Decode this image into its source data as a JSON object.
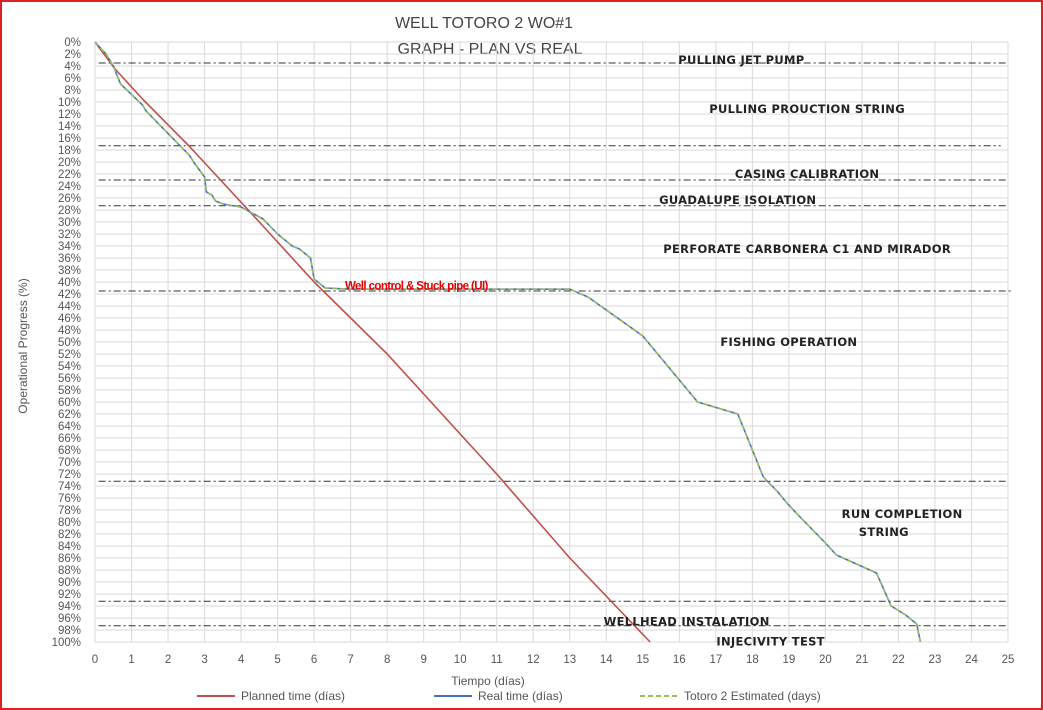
{
  "chart_data": {
    "type": "line",
    "title": [
      "WELL TOTORO  2  WO#1",
      "GRAPH   - PLAN VS REAL"
    ],
    "xlabel": "Tiempo (días)",
    "ylabel": "Operational Progress (%)",
    "xlim": [
      0,
      25
    ],
    "ylim": [
      0,
      100
    ],
    "y_inverted": true,
    "grid": true,
    "legend_position": "bottom",
    "series": [
      {
        "name": "Planned time (días)",
        "color": "#c0504d",
        "dash": "solid",
        "points": [
          [
            0,
            0
          ],
          [
            0.55,
            4.5
          ],
          [
            1.3,
            9.5
          ],
          [
            2.6,
            17.5
          ],
          [
            4.5,
            30
          ],
          [
            6.0,
            40
          ],
          [
            8.0,
            52
          ],
          [
            11.0,
            72
          ],
          [
            13.0,
            86
          ],
          [
            15.2,
            100
          ]
        ]
      },
      {
        "name": "Real time (días)",
        "color": "#4472c4",
        "dash": "solid",
        "points": [
          [
            0,
            0
          ],
          [
            0.3,
            2
          ],
          [
            0.5,
            4
          ],
          [
            0.7,
            7
          ],
          [
            1.3,
            10.5
          ],
          [
            1.4,
            11.5
          ],
          [
            2.6,
            19
          ],
          [
            2.7,
            20
          ],
          [
            3.0,
            22.5
          ],
          [
            3.05,
            25
          ],
          [
            3.2,
            25.5
          ],
          [
            3.3,
            26.5
          ],
          [
            3.5,
            27
          ],
          [
            4.0,
            27.5
          ],
          [
            4.6,
            29.5
          ],
          [
            5.0,
            32
          ],
          [
            5.4,
            34
          ],
          [
            5.6,
            34.5
          ],
          [
            5.9,
            36
          ],
          [
            6.0,
            39.5
          ],
          [
            6.3,
            41
          ],
          [
            7.0,
            41.2
          ],
          [
            10.0,
            41.2
          ],
          [
            13.0,
            41.2
          ],
          [
            13.5,
            42.5
          ],
          [
            15.0,
            49
          ],
          [
            16.5,
            60
          ],
          [
            17.6,
            62
          ],
          [
            18.3,
            72.5
          ],
          [
            18.7,
            75
          ],
          [
            18.9,
            76.5
          ],
          [
            19.2,
            78.5
          ],
          [
            20.0,
            83.5
          ],
          [
            20.3,
            85.5
          ],
          [
            21.4,
            88.5
          ],
          [
            21.8,
            94
          ],
          [
            22.2,
            95.5
          ],
          [
            22.5,
            97
          ],
          [
            22.6,
            100
          ]
        ]
      },
      {
        "name": "Totoro 2 Estimated (days)",
        "color": "#9bbb59",
        "dash": "dashed",
        "points": [
          [
            0,
            0
          ],
          [
            0.3,
            2
          ],
          [
            0.5,
            4
          ],
          [
            0.7,
            7
          ],
          [
            1.3,
            10.5
          ],
          [
            1.4,
            11.5
          ],
          [
            2.6,
            19
          ],
          [
            2.7,
            20
          ],
          [
            3.0,
            22.5
          ],
          [
            3.05,
            25
          ],
          [
            3.2,
            25.5
          ],
          [
            3.3,
            26.5
          ],
          [
            3.5,
            27
          ],
          [
            4.0,
            27.5
          ],
          [
            4.6,
            29.5
          ],
          [
            5.0,
            32
          ],
          [
            5.4,
            34
          ],
          [
            5.6,
            34.5
          ],
          [
            5.9,
            36
          ],
          [
            6.0,
            39.5
          ],
          [
            6.3,
            41
          ],
          [
            7.0,
            41.2
          ],
          [
            10.0,
            41.2
          ],
          [
            13.0,
            41.2
          ],
          [
            13.5,
            42.5
          ],
          [
            15.0,
            49
          ],
          [
            16.5,
            60
          ],
          [
            17.6,
            62
          ],
          [
            18.3,
            72.5
          ],
          [
            18.7,
            75
          ],
          [
            18.9,
            76.5
          ],
          [
            19.2,
            78.5
          ],
          [
            20.0,
            83.5
          ],
          [
            20.3,
            85.5
          ],
          [
            21.4,
            88.5
          ],
          [
            21.8,
            94
          ],
          [
            22.2,
            95.5
          ],
          [
            22.5,
            97
          ],
          [
            22.6,
            100
          ]
        ]
      }
    ],
    "phase_lines": [
      {
        "y": 3.5,
        "x_start": 0.1,
        "x_end": 25.0
      },
      {
        "y": 17.3,
        "x_start": 0.1,
        "x_end": 24.8
      },
      {
        "y": 23.0,
        "x_start": 0.1,
        "x_end": 25.0
      },
      {
        "y": 27.3,
        "x_start": 0.1,
        "x_end": 25.0
      },
      {
        "y": 41.5,
        "x_start": 0.1,
        "x_end": 25.1
      },
      {
        "y": 73.2,
        "x_start": 0.1,
        "x_end": 25.0
      },
      {
        "y": 93.2,
        "x_start": 0.1,
        "x_end": 25.0
      },
      {
        "y": 97.3,
        "x_start": 0.1,
        "x_end": 25.0
      }
    ],
    "phase_labels": [
      {
        "text": "PULLING JET PUMP",
        "x": 17.7,
        "y": 3.0
      },
      {
        "text": "PULLING PROUCTION  STRING",
        "x": 19.5,
        "y": 11.2
      },
      {
        "text": "CASING CALIBRATION",
        "x": 19.5,
        "y": 22.0
      },
      {
        "text": "GUADALUPE ISOLATION",
        "x": 17.6,
        "y": 26.3
      },
      {
        "text": "PERFORATE  CARBONERA  C1 AND MIRADOR",
        "x": 19.5,
        "y": 34.5
      },
      {
        "text": "FISHING OPERATION",
        "x": 19.0,
        "y": 50.0
      },
      {
        "text": "RUN COMPLETION",
        "x": 22.1,
        "y": 78.7
      },
      {
        "text": "STRING",
        "x": 21.6,
        "y": 81.7
      },
      {
        "text": "WELLHEAD  INSTALATION",
        "x": 16.2,
        "y": 96.6
      },
      {
        "text": "INJECIVITY TEST",
        "x": 18.5,
        "y": 99.9
      }
    ],
    "annotations": [
      {
        "text": "Well control & Stuck pipe (UI)",
        "x": 8.8,
        "y": 40.6,
        "color": "#e00000"
      }
    ],
    "x_ticks": [
      "0",
      "1",
      "2",
      "3",
      "4",
      "5",
      "6",
      "7",
      "8",
      "9",
      "10",
      "11",
      "12",
      "13",
      "14",
      "15",
      "16",
      "17",
      "18",
      "19",
      "20",
      "21",
      "22",
      "23",
      "24",
      "25"
    ],
    "y_ticks": [
      "0%",
      "2%",
      "4%",
      "6%",
      "8%",
      "10%",
      "12%",
      "14%",
      "16%",
      "18%",
      "20%",
      "22%",
      "24%",
      "26%",
      "28%",
      "30%",
      "32%",
      "34%",
      "36%",
      "38%",
      "40%",
      "42%",
      "44%",
      "46%",
      "48%",
      "50%",
      "52%",
      "54%",
      "56%",
      "58%",
      "60%",
      "62%",
      "64%",
      "66%",
      "68%",
      "70%",
      "72%",
      "74%",
      "76%",
      "78%",
      "80%",
      "82%",
      "84%",
      "86%",
      "88%",
      "90%",
      "92%",
      "94%",
      "96%",
      "98%",
      "100%"
    ]
  }
}
